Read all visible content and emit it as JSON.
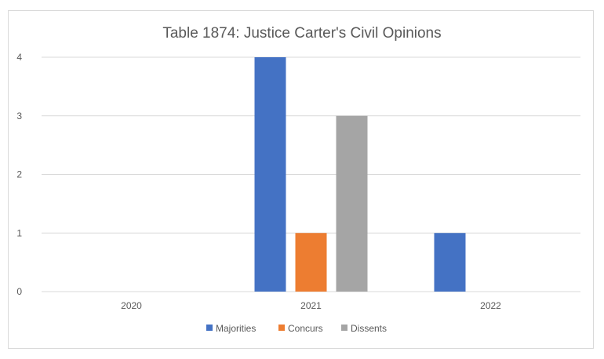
{
  "chart_data": {
    "type": "bar",
    "title": "Table 1874: Justice Carter's Civil Opinions",
    "categories": [
      "2020",
      "2021",
      "2022"
    ],
    "series": [
      {
        "name": "Majorities",
        "color": "#4472c4",
        "values": [
          0,
          4,
          1
        ]
      },
      {
        "name": "Concurs",
        "color": "#ed7d31",
        "values": [
          0,
          1,
          0
        ]
      },
      {
        "name": "Dissents",
        "color": "#a5a5a5",
        "values": [
          0,
          3,
          0
        ]
      }
    ],
    "ylim": [
      0,
      4
    ],
    "yticks": [
      "0",
      "1",
      "2",
      "3",
      "4"
    ],
    "grid": true,
    "legend_position": "bottom"
  }
}
